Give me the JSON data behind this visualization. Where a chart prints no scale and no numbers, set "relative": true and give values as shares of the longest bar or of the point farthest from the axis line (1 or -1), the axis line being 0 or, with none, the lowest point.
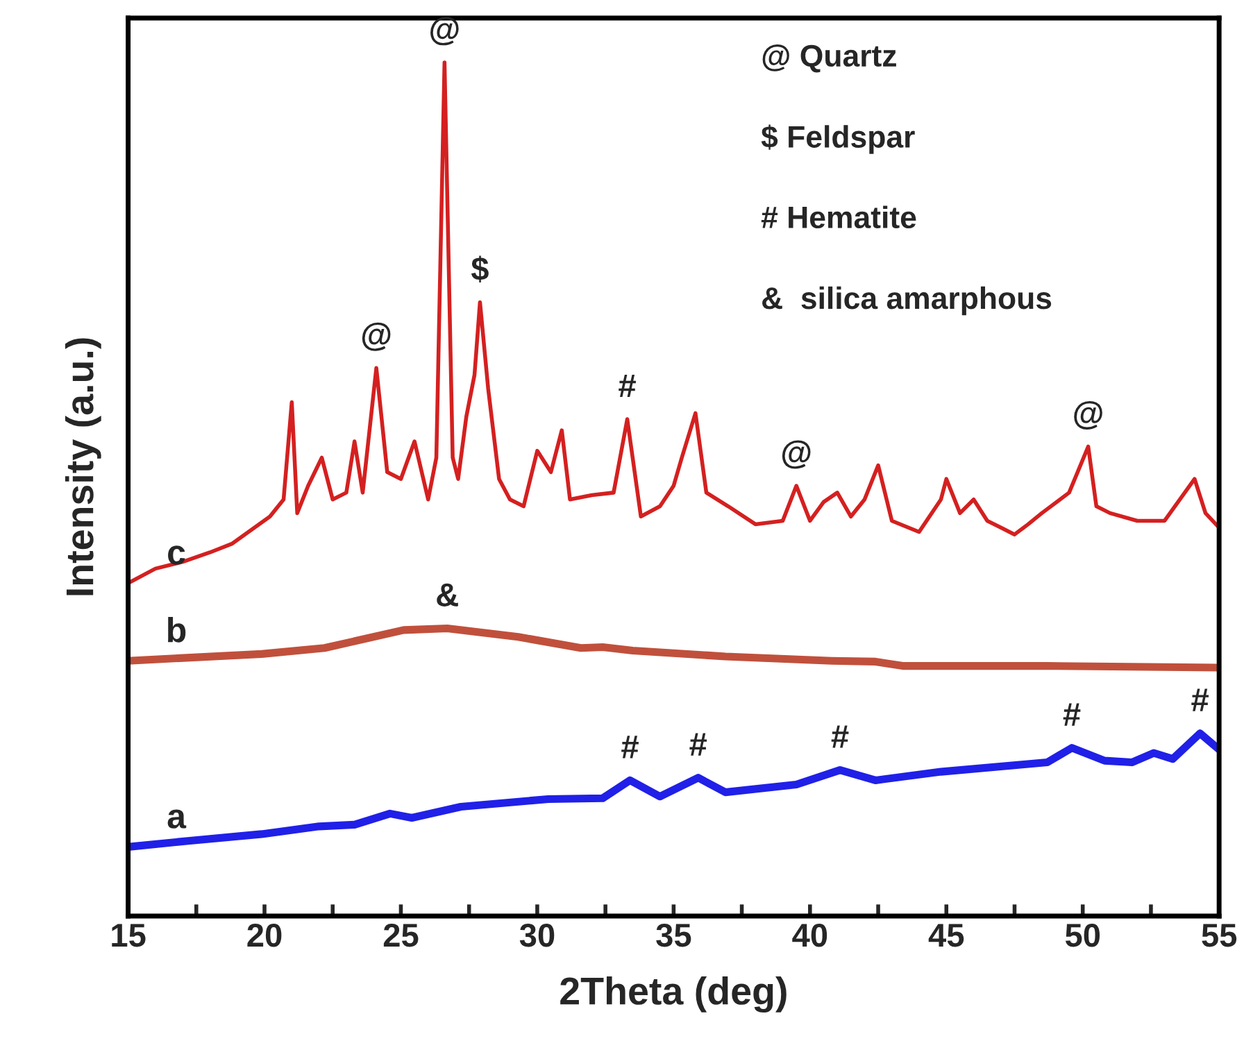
{
  "chart_data": {
    "type": "line",
    "relative": true,
    "xlabel": "2Theta (deg)",
    "ylabel": "Intensity (a.u.)",
    "xlim": [
      15,
      55
    ],
    "xticks": [
      15,
      {
        "value": 17.5,
        "label": null
      },
      20,
      {
        "value": 22.5,
        "label": null
      },
      25,
      {
        "value": 27.5,
        "label": null
      },
      30,
      {
        "value": 32.5,
        "label": null
      },
      35,
      {
        "value": 37.5,
        "label": null
      },
      40,
      {
        "value": 42.5,
        "label": null
      },
      45,
      {
        "value": 47.5,
        "label": null
      },
      50,
      {
        "value": 52.5,
        "label": null
      },
      55
    ],
    "tick_labels": "x",
    "grid": false,
    "legend": false,
    "marker": "none",
    "line_style": "solid",
    "series": [
      {
        "name": "c",
        "color": "#d42020",
        "x": [
          15.0,
          16.0,
          17.0,
          18.0,
          18.8,
          19.5,
          20.2,
          20.7,
          21.0,
          21.2,
          21.6,
          22.1,
          22.5,
          23.0,
          23.3,
          23.6,
          24.1,
          24.5,
          25.0,
          25.5,
          26.0,
          26.3,
          26.6,
          26.9,
          27.1,
          27.4,
          27.7,
          27.9,
          28.2,
          28.6,
          29.0,
          29.5,
          30.0,
          30.5,
          30.9,
          31.2,
          32.0,
          32.8,
          33.3,
          33.8,
          34.5,
          35.0,
          35.3,
          35.8,
          36.2,
          37.0,
          38.0,
          39.0,
          39.5,
          40.0,
          40.5,
          41.0,
          41.5,
          42.0,
          42.5,
          43.0,
          44.0,
          44.8,
          45.0,
          45.5,
          46.0,
          46.5,
          47.0,
          47.5,
          48.0,
          48.5,
          49.5,
          50.2,
          50.5,
          51.0,
          52.0,
          53.0,
          54.1,
          54.5,
          55.0
        ],
        "values": [
          0.39,
          0.407,
          0.415,
          0.426,
          0.436,
          0.452,
          0.468,
          0.488,
          0.602,
          0.472,
          0.504,
          0.537,
          0.488,
          0.496,
          0.556,
          0.496,
          0.642,
          0.52,
          0.512,
          0.556,
          0.488,
          0.537,
          1.0,
          0.537,
          0.512,
          0.585,
          0.634,
          0.719,
          0.618,
          0.512,
          0.488,
          0.48,
          0.545,
          0.52,
          0.569,
          0.488,
          0.493,
          0.496,
          0.582,
          0.468,
          0.48,
          0.504,
          0.537,
          0.589,
          0.496,
          0.48,
          0.459,
          0.463,
          0.504,
          0.463,
          0.485,
          0.496,
          0.468,
          0.488,
          0.528,
          0.463,
          0.45,
          0.488,
          0.512,
          0.472,
          0.488,
          0.463,
          0.455,
          0.447,
          0.459,
          0.472,
          0.496,
          0.55,
          0.48,
          0.472,
          0.463,
          0.463,
          0.512,
          0.472,
          0.455
        ]
      },
      {
        "name": "b",
        "color": "#c0503c",
        "x": [
          15.0,
          19.9,
          22.2,
          25.1,
          26.7,
          29.3,
          31.6,
          32.4,
          33.5,
          36.9,
          40.8,
          42.4,
          43.4,
          48.7,
          55.0
        ],
        "values": [
          0.299,
          0.307,
          0.314,
          0.335,
          0.337,
          0.327,
          0.314,
          0.315,
          0.311,
          0.304,
          0.299,
          0.298,
          0.293,
          0.293,
          0.291
        ]
      },
      {
        "name": "a",
        "color": "#2020e8",
        "x": [
          15.0,
          17.2,
          19.9,
          22.0,
          23.3,
          24.6,
          25.4,
          27.2,
          30.4,
          32.4,
          33.4,
          34.5,
          35.9,
          36.9,
          39.5,
          41.1,
          42.4,
          44.8,
          48.7,
          49.6,
          50.8,
          51.8,
          52.6,
          53.3,
          54.3,
          55.0
        ],
        "values": [
          0.081,
          0.088,
          0.096,
          0.105,
          0.107,
          0.12,
          0.115,
          0.128,
          0.137,
          0.138,
          0.159,
          0.14,
          0.162,
          0.145,
          0.154,
          0.171,
          0.159,
          0.169,
          0.18,
          0.197,
          0.182,
          0.18,
          0.191,
          0.184,
          0.214,
          0.195
        ]
      }
    ],
    "annotations": [
      "@ Quartz",
      "$ Feldspar",
      "# Hematite",
      "&  silica amarphous",
      {
        "text": "@",
        "x": 26.6,
        "y": 1.0
      },
      {
        "text": "@",
        "x": 24.1,
        "y": 0.642
      },
      {
        "text": "$",
        "x": 27.9,
        "y": 0.719
      },
      {
        "text": "#",
        "x": 33.3,
        "y": 0.582
      },
      {
        "text": "@",
        "x": 39.5,
        "y": 0.504
      },
      {
        "text": "@",
        "x": 50.2,
        "y": 0.55
      },
      {
        "text": "&",
        "x": 26.7,
        "y": 0.337
      },
      {
        "text": "#",
        "x": 33.4,
        "y": 0.159
      },
      {
        "text": "#",
        "x": 35.9,
        "y": 0.162
      },
      {
        "text": "#",
        "x": 41.1,
        "y": 0.171
      },
      {
        "text": "#",
        "x": 49.6,
        "y": 0.197
      },
      {
        "text": "#",
        "x": 54.3,
        "y": 0.214
      }
    ]
  }
}
